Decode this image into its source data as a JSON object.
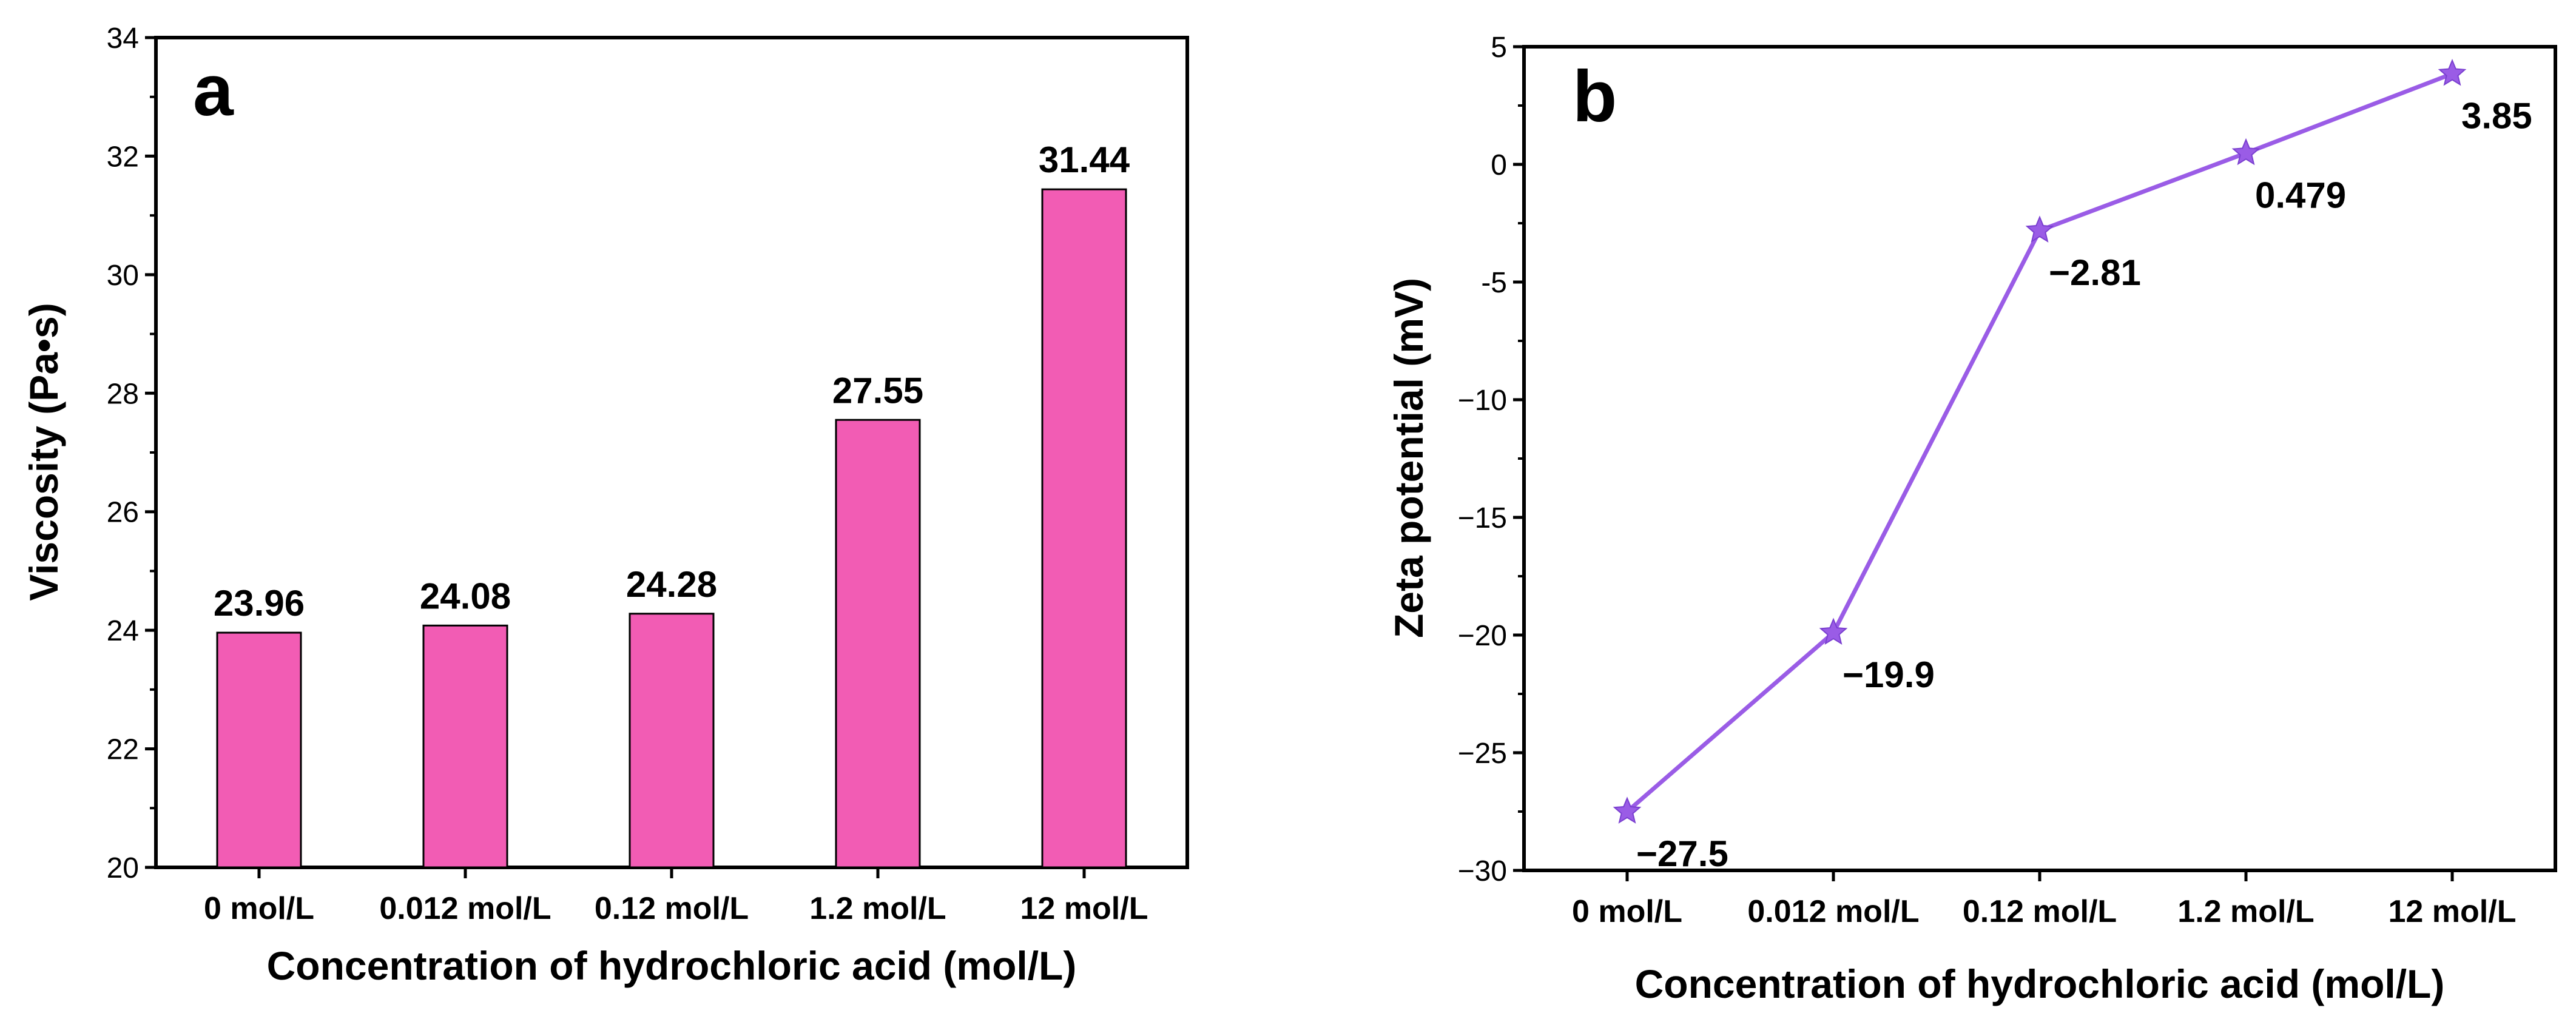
{
  "chart_data": [
    {
      "type": "bar",
      "panel_label": "a",
      "categories": [
        "0 mol/L",
        "0.012 mol/L",
        "0.12 mol/L",
        "1.2 mol/L",
        "12 mol/L"
      ],
      "values": [
        23.96,
        24.08,
        24.28,
        27.55,
        31.44
      ],
      "data_labels": [
        "23.96",
        "24.08",
        "24.28",
        "27.55",
        "31.44"
      ],
      "xlabel": "Concentration of hydrochloric acid (mol/L)",
      "ylabel": "Viscosity (Pa•s)",
      "ylim": [
        20,
        34
      ],
      "yticks": [
        "20",
        "22",
        "24",
        "26",
        "28",
        "30",
        "32",
        "34"
      ],
      "bar_color": "#f25cb4",
      "grid": false
    },
    {
      "type": "line",
      "panel_label": "b",
      "categories": [
        "0 mol/L",
        "0.012 mol/L",
        "0.12 mol/L",
        "1.2 mol/L",
        "12 mol/L"
      ],
      "values": [
        -27.5,
        -19.9,
        -2.81,
        0.479,
        3.85
      ],
      "data_labels": [
        "−27.5",
        "−19.9",
        "−2.81",
        "0.479",
        "3.85"
      ],
      "xlabel": "Concentration of hydrochloric acid (mol/L)",
      "ylabel": "Zeta potential (mV)",
      "ylim": [
        -30,
        5
      ],
      "yticks": [
        "−30",
        "−25",
        "−20",
        "−15",
        "−10",
        "-5",
        "0",
        "5"
      ],
      "marker": "star",
      "line_color": "#9a5ce6",
      "grid": false
    }
  ]
}
